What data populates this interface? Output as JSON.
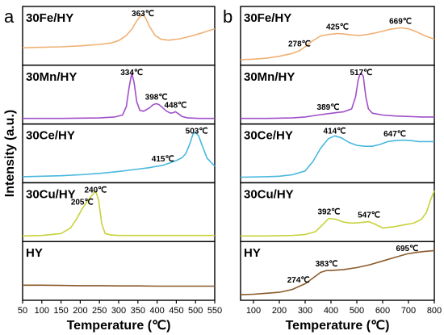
{
  "chart_data": [
    {
      "type": "line",
      "panel_label": "a",
      "xlabel": "Temperature (℃)",
      "ylabel": "Intensity (a.u.)",
      "xlim": [
        50,
        550
      ],
      "xticks": [
        50,
        100,
        150,
        200,
        250,
        300,
        350,
        400,
        450,
        500,
        550
      ],
      "yticks": "none",
      "legend": "none",
      "grid": false,
      "stacked_subplots": [
        {
          "label": "30Fe/HY",
          "color": "#F0B074",
          "x": [
            50,
            100,
            150,
            200,
            250,
            280,
            300,
            320,
            335,
            345,
            355,
            363,
            370,
            380,
            395,
            410,
            430,
            460,
            490,
            520,
            550
          ],
          "y": [
            0.3,
            0.31,
            0.32,
            0.34,
            0.37,
            0.4,
            0.45,
            0.56,
            0.7,
            0.84,
            0.95,
            1.0,
            0.93,
            0.75,
            0.56,
            0.48,
            0.46,
            0.49,
            0.55,
            0.62,
            0.7
          ],
          "annotations": [
            {
              "x": 363,
              "text": "363℃"
            }
          ]
        },
        {
          "label": "30Mn/HY",
          "color": "#A050C8",
          "x": [
            50,
            150,
            250,
            290,
            310,
            320,
            327,
            334,
            340,
            347,
            355,
            365,
            380,
            390,
            398,
            405,
            415,
            425,
            435,
            442,
            448,
            455,
            465,
            480,
            510,
            550
          ],
          "y": [
            0.05,
            0.05,
            0.06,
            0.08,
            0.12,
            0.3,
            0.7,
            1.0,
            0.82,
            0.4,
            0.22,
            0.2,
            0.27,
            0.34,
            0.36,
            0.34,
            0.27,
            0.2,
            0.16,
            0.17,
            0.19,
            0.15,
            0.09,
            0.06,
            0.05,
            0.05
          ],
          "annotations": [
            {
              "x": 334,
              "text": "334℃"
            },
            {
              "x": 398,
              "text": "398℃"
            },
            {
              "x": 448,
              "text": "448℃"
            }
          ]
        },
        {
          "label": "30Ce/HY",
          "color": "#48B8DE",
          "x": [
            50,
            100,
            150,
            200,
            250,
            300,
            350,
            380,
            400,
            415,
            430,
            450,
            465,
            475,
            485,
            493,
            500,
            508,
            518,
            530,
            550
          ],
          "y": [
            0.06,
            0.07,
            0.08,
            0.1,
            0.13,
            0.17,
            0.22,
            0.25,
            0.28,
            0.3,
            0.34,
            0.4,
            0.46,
            0.55,
            0.75,
            0.95,
            1.0,
            0.92,
            0.7,
            0.45,
            0.28
          ],
          "annotations": [
            {
              "x": 415,
              "text": "415℃"
            },
            {
              "x": 503,
              "text": "503℃"
            }
          ]
        },
        {
          "label": "30Cu/HY",
          "color": "#C8D23C",
          "x": [
            50,
            100,
            150,
            175,
            190,
            205,
            220,
            232,
            240,
            248,
            256,
            265,
            280,
            300,
            350,
            400,
            450,
            500,
            550
          ],
          "y": [
            0.05,
            0.06,
            0.1,
            0.22,
            0.4,
            0.62,
            0.8,
            0.92,
            1.0,
            0.8,
            0.3,
            0.1,
            0.07,
            0.06,
            0.06,
            0.06,
            0.06,
            0.06,
            0.06
          ],
          "annotations": [
            {
              "x": 205,
              "text": "205℃"
            },
            {
              "x": 240,
              "text": "240℃"
            }
          ]
        },
        {
          "label": "HY",
          "color": "#8B5A2B",
          "x": [
            50,
            100,
            150,
            200,
            250,
            300,
            350,
            400,
            450,
            500,
            550
          ],
          "y": [
            0.25,
            0.25,
            0.245,
            0.24,
            0.24,
            0.235,
            0.235,
            0.23,
            0.23,
            0.23,
            0.23
          ],
          "annotations": []
        }
      ]
    },
    {
      "type": "line",
      "panel_label": "b",
      "xlabel": "Temperature (℃)",
      "ylabel": "",
      "xlim": [
        50,
        800
      ],
      "xticks": [
        100,
        200,
        300,
        400,
        500,
        600,
        700,
        800
      ],
      "yticks": "none",
      "legend": "none",
      "grid": false,
      "stacked_subplots": [
        {
          "label": "30Fe/HY",
          "color": "#F0B074",
          "x": [
            50,
            100,
            150,
            200,
            250,
            278,
            300,
            330,
            360,
            390,
            410,
            425,
            450,
            480,
            510,
            540,
            570,
            600,
            630,
            669,
            700,
            730,
            760,
            800
          ],
          "y": [
            0.05,
            0.06,
            0.08,
            0.12,
            0.18,
            0.24,
            0.32,
            0.45,
            0.55,
            0.58,
            0.59,
            0.6,
            0.59,
            0.57,
            0.56,
            0.58,
            0.61,
            0.65,
            0.69,
            0.72,
            0.7,
            0.64,
            0.56,
            0.48
          ],
          "annotations": [
            {
              "x": 278,
              "text": "278℃"
            },
            {
              "x": 425,
              "text": "425℃"
            },
            {
              "x": 669,
              "text": "669℃"
            }
          ]
        },
        {
          "label": "30Mn/HY",
          "color": "#A050C8",
          "x": [
            50,
            150,
            250,
            300,
            350,
            389,
            420,
            450,
            480,
            495,
            505,
            512,
            517,
            525,
            535,
            545,
            560,
            600,
            650,
            700,
            750,
            800
          ],
          "y": [
            0.05,
            0.05,
            0.06,
            0.08,
            0.12,
            0.15,
            0.17,
            0.19,
            0.25,
            0.5,
            0.85,
            0.98,
            1.0,
            0.94,
            0.5,
            0.25,
            0.16,
            0.12,
            0.1,
            0.09,
            0.08,
            0.08
          ],
          "annotations": [
            {
              "x": 389,
              "text": "389℃"
            },
            {
              "x": 517,
              "text": "517℃"
            }
          ]
        },
        {
          "label": "30Ce/HY",
          "color": "#48B8DE",
          "x": [
            50,
            150,
            200,
            250,
            300,
            330,
            360,
            390,
            414,
            440,
            470,
            500,
            530,
            560,
            590,
            620,
            647,
            680,
            710,
            740,
            770,
            800
          ],
          "y": [
            0.05,
            0.06,
            0.07,
            0.1,
            0.18,
            0.38,
            0.66,
            0.86,
            0.92,
            0.88,
            0.78,
            0.72,
            0.7,
            0.7,
            0.74,
            0.8,
            0.82,
            0.83,
            0.82,
            0.8,
            0.8,
            0.8
          ],
          "annotations": [
            {
              "x": 414,
              "text": "414℃"
            },
            {
              "x": 647,
              "text": "647℃"
            }
          ]
        },
        {
          "label": "30Cu/HY",
          "color": "#C8D23C",
          "x": [
            50,
            150,
            250,
            300,
            340,
            370,
            392,
            420,
            450,
            480,
            510,
            547,
            570,
            600,
            640,
            680,
            720,
            750,
            770,
            785,
            800
          ],
          "y": [
            0.05,
            0.05,
            0.06,
            0.08,
            0.14,
            0.3,
            0.42,
            0.4,
            0.34,
            0.32,
            0.33,
            0.35,
            0.3,
            0.22,
            0.24,
            0.28,
            0.32,
            0.4,
            0.55,
            0.8,
            1.0
          ],
          "annotations": [
            {
              "x": 392,
              "text": "392℃"
            },
            {
              "x": 547,
              "text": "547℃"
            }
          ]
        },
        {
          "label": "HY",
          "color": "#8B5A2B",
          "x": [
            50,
            100,
            150,
            200,
            250,
            274,
            300,
            330,
            360,
            383,
            400,
            450,
            500,
            550,
            600,
            650,
            695,
            730,
            760,
            800
          ],
          "y": [
            0.05,
            0.06,
            0.08,
            0.1,
            0.16,
            0.22,
            0.28,
            0.4,
            0.52,
            0.56,
            0.56,
            0.58,
            0.62,
            0.68,
            0.76,
            0.84,
            0.91,
            0.94,
            0.96,
            0.98
          ],
          "annotations": [
            {
              "x": 274,
              "text": "274℃"
            },
            {
              "x": 383,
              "text": "383℃"
            },
            {
              "x": 695,
              "text": "695℃"
            }
          ]
        }
      ]
    }
  ]
}
